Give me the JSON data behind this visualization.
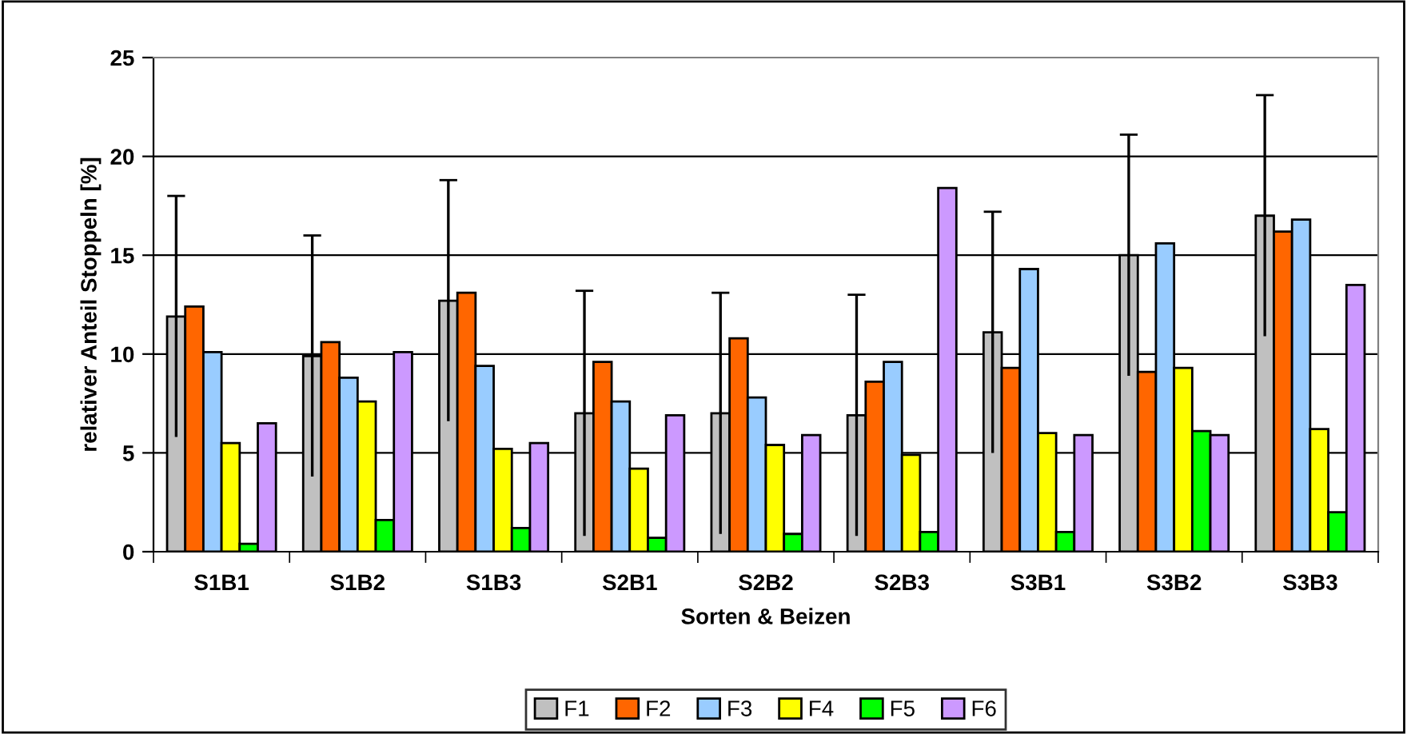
{
  "chart_data": {
    "type": "bar",
    "xlabel": "Sorten & Beizen",
    "ylabel": "relativer Anteil Stoppeln [%]",
    "categories": [
      "S1B1",
      "S1B2",
      "S1B3",
      "S2B1",
      "S2B2",
      "S2B3",
      "S3B1",
      "S3B2",
      "S3B3"
    ],
    "series": [
      {
        "name": "F1",
        "color": "#c0c0c0",
        "values": [
          11.9,
          9.9,
          12.7,
          7.0,
          7.0,
          6.9,
          11.1,
          15.0,
          17.0
        ],
        "errors": [
          6.1,
          6.1,
          6.1,
          6.2,
          6.1,
          6.1,
          6.1,
          6.1,
          6.1
        ]
      },
      {
        "name": "F2",
        "color": "#ff6600",
        "values": [
          12.4,
          10.6,
          13.1,
          9.6,
          10.8,
          8.6,
          9.3,
          9.1,
          16.2
        ]
      },
      {
        "name": "F3",
        "color": "#99ccff",
        "values": [
          10.1,
          8.8,
          9.4,
          7.6,
          7.8,
          9.6,
          14.3,
          15.6,
          16.8
        ]
      },
      {
        "name": "F4",
        "color": "#ffff00",
        "values": [
          5.5,
          7.6,
          5.2,
          4.2,
          5.4,
          4.9,
          6.0,
          9.3,
          6.2
        ]
      },
      {
        "name": "F5",
        "color": "#00ff00",
        "values": [
          0.4,
          1.6,
          1.2,
          0.7,
          0.9,
          1.0,
          1.0,
          6.1,
          2.0
        ]
      },
      {
        "name": "F6",
        "color": "#cc99ff",
        "values": [
          6.5,
          10.1,
          5.5,
          6.9,
          5.9,
          18.4,
          5.9,
          5.9,
          13.5
        ]
      }
    ],
    "ylim": [
      0,
      25
    ],
    "yticks": [
      0,
      5,
      10,
      15,
      20,
      25
    ],
    "grid": "y",
    "legend": "bottom"
  }
}
